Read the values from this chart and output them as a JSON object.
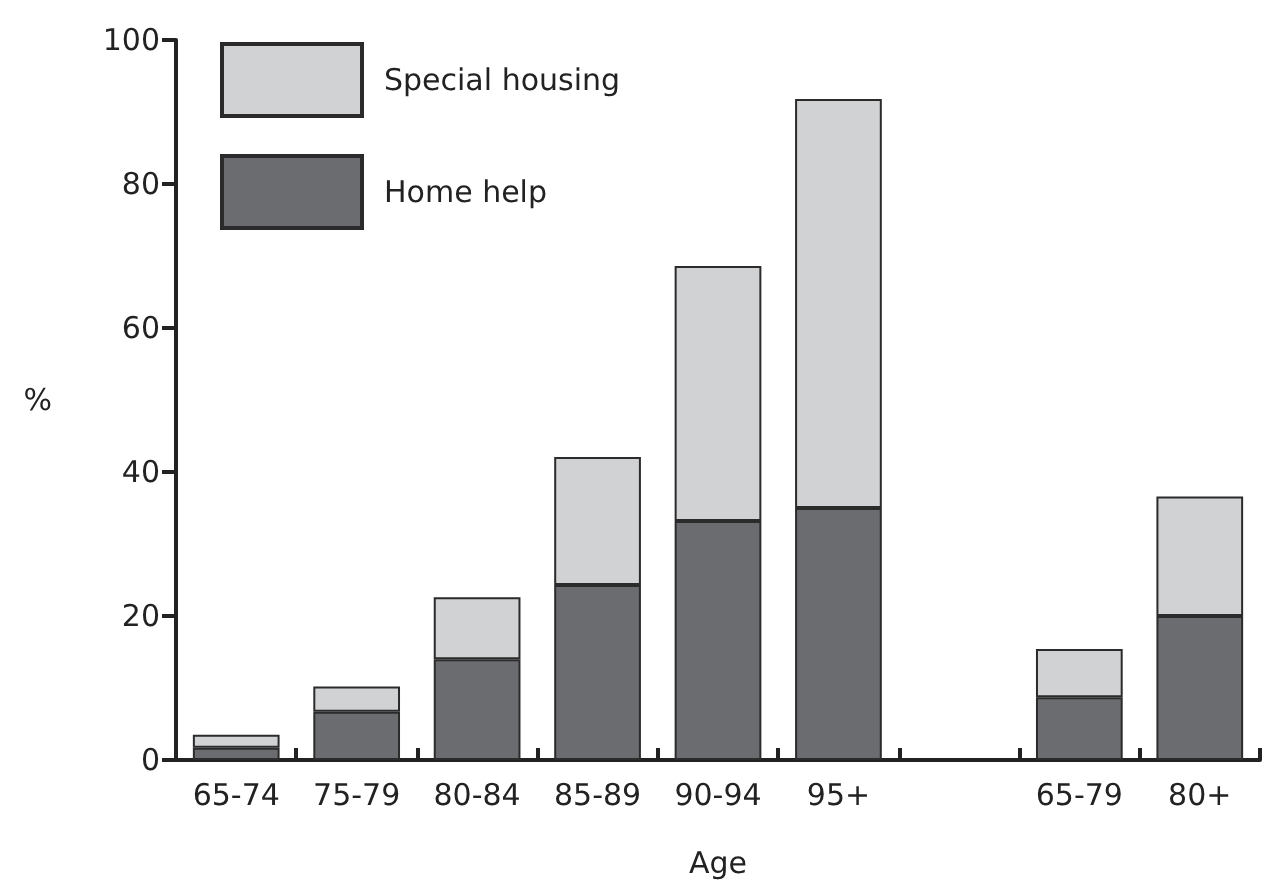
{
  "chart_data": {
    "type": "bar",
    "stacked": true,
    "xlabel": "Age",
    "ylabel": "%",
    "categories": [
      "65-74",
      "75-79",
      "80-84",
      "85-89",
      "90-94",
      "95+",
      null,
      "65-79",
      "80+"
    ],
    "series": [
      {
        "name": "Home help",
        "color": "#6b6c70",
        "values": [
          1.7,
          6.7,
          14.0,
          24.3,
          33.2,
          35.0,
          null,
          8.7,
          20.0
        ]
      },
      {
        "name": "Special housing",
        "color": "#d1d2d4",
        "values": [
          1.8,
          3.5,
          8.6,
          17.8,
          35.4,
          56.8,
          null,
          6.7,
          16.6
        ]
      }
    ],
    "ylim": [
      0,
      100
    ],
    "yticks": [
      0,
      20,
      40,
      60,
      80,
      100
    ],
    "grid": false,
    "legend": "top left"
  }
}
